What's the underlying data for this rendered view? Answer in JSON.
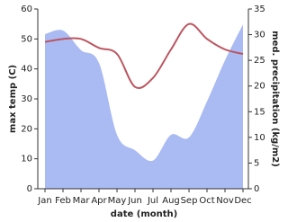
{
  "chart_data": {
    "type": "line",
    "x_label": "date (month)",
    "y_label": "max temp (C)",
    "y2_label": "med. precipitation (kg/m2)",
    "categories": [
      "Jan",
      "Feb",
      "Mar",
      "Apr",
      "May",
      "Jun",
      "Jul",
      "Aug",
      "Sep",
      "Oct",
      "Nov",
      "Dec"
    ],
    "series": [
      {
        "type": "area",
        "axis": "y2",
        "color": "#aabaf2",
        "values": [
          30.1,
          30.8,
          27,
          24.5,
          10.5,
          7.5,
          5.5,
          10.5,
          10,
          17,
          25,
          32
        ]
      },
      {
        "type": "line",
        "color": "#bb5560",
        "values": [
          49,
          50,
          50,
          47,
          45,
          34,
          37,
          46.5,
          55,
          50,
          46.5,
          45
        ]
      }
    ],
    "ylim": [
      0,
      60
    ],
    "yticks": [
      0,
      10,
      20,
      30,
      40,
      50,
      60
    ],
    "y2lim": [
      0,
      35
    ],
    "y2ticks": [
      0,
      5,
      10,
      15,
      20,
      25,
      30,
      35
    ]
  }
}
